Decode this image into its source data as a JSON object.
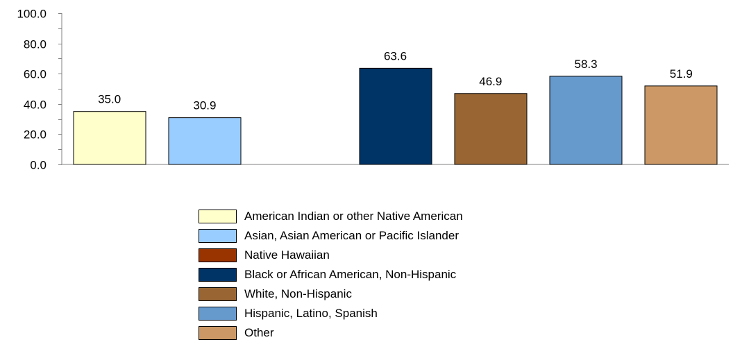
{
  "chart_data": {
    "type": "bar",
    "categories": [
      "American Indian or other Native American",
      "Asian, Asian American or Pacific Islander",
      "Native Hawaiian",
      "Black or African American, Non-Hispanic",
      "White, Non-Hispanic",
      "Hispanic, Latino, Spanish",
      "Other"
    ],
    "values": [
      35.0,
      30.9,
      null,
      63.6,
      46.9,
      58.3,
      51.9
    ],
    "data_labels": [
      "35.0",
      "30.9",
      "",
      "63.6",
      "46.9",
      "58.3",
      "51.9"
    ],
    "colors": [
      "#FFFFCC",
      "#99CCFF",
      "#993300",
      "#003366",
      "#996633",
      "#6699CC",
      "#CC9966"
    ],
    "y_ticks": [
      "0.0",
      "20.0",
      "40.0",
      "60.0",
      "80.0",
      "100.0"
    ],
    "ylim": [
      0,
      100
    ],
    "minor_tick_step": 10,
    "grid": false,
    "legend_position": "bottom"
  }
}
